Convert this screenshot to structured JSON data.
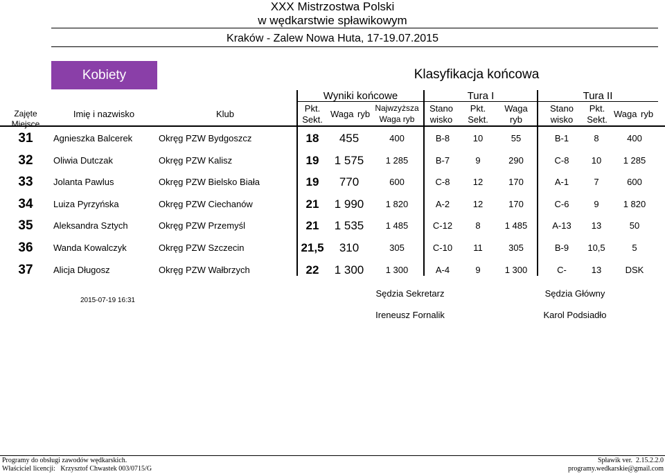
{
  "header": {
    "title_line1": "XXX Mistrzostwa Polski",
    "title_line2": "w wędkarstwie spławikowym",
    "location": "Kraków - Zalew Nowa Huta, 17-19.07.2015",
    "category": "Kobiety",
    "classification": "Klasyfikacja końcowa"
  },
  "table": {
    "groups": {
      "final": "Wyniki końcowe",
      "round1": "Tura I",
      "round2": "Tura II"
    },
    "columns": {
      "place": "Zajęte Miejsce",
      "name": "Imię i nazwisko",
      "club": "Klub",
      "pkt_a": "Pkt.",
      "pkt_b": "Sekt.",
      "waga_a": "Waga",
      "waga_b": "ryb",
      "biggest_a": "Najwzyższa",
      "biggest_b": "Waga ryb",
      "stano_a": "Stano",
      "stano_b": "wisko"
    },
    "rows": [
      {
        "place": "31",
        "name": "Agnieszka Balcerek",
        "club": "Okręg PZW Bydgoszcz",
        "pkt": "18",
        "waga": "455",
        "biggest": "400",
        "t1_stano": "B-8",
        "t1_pkt": "10",
        "t1_waga": "55",
        "t2_stano": "B-1",
        "t2_pkt": "8",
        "t2_waga": "400"
      },
      {
        "place": "32",
        "name": "Oliwia Dutczak",
        "club": "Okręg PZW Kalisz",
        "pkt": "19",
        "waga": "1 575",
        "biggest": "1 285",
        "t1_stano": "B-7",
        "t1_pkt": "9",
        "t1_waga": "290",
        "t2_stano": "C-8",
        "t2_pkt": "10",
        "t2_waga": "1 285"
      },
      {
        "place": "33",
        "name": "Jolanta Pawlus",
        "club": "Okręg PZW Bielsko Biała",
        "pkt": "19",
        "waga": "770",
        "biggest": "600",
        "t1_stano": "C-8",
        "t1_pkt": "12",
        "t1_waga": "170",
        "t2_stano": "A-1",
        "t2_pkt": "7",
        "t2_waga": "600"
      },
      {
        "place": "34",
        "name": "Luiza Pyrzyńska",
        "club": "Okręg PZW Ciechanów",
        "pkt": "21",
        "waga": "1 990",
        "biggest": "1 820",
        "t1_stano": "A-2",
        "t1_pkt": "12",
        "t1_waga": "170",
        "t2_stano": "C-6",
        "t2_pkt": "9",
        "t2_waga": "1 820"
      },
      {
        "place": "35",
        "name": "Aleksandra Sztych",
        "club": "Okręg PZW Przemyśl",
        "pkt": "21",
        "waga": "1 535",
        "biggest": "1 485",
        "t1_stano": "C-12",
        "t1_pkt": "8",
        "t1_waga": "1 485",
        "t2_stano": "A-13",
        "t2_pkt": "13",
        "t2_waga": "50"
      },
      {
        "place": "36",
        "name": "Wanda Kowalczyk",
        "club": "Okręg PZW Szczecin",
        "pkt": "21,5",
        "waga": "310",
        "biggest": "305",
        "t1_stano": "C-10",
        "t1_pkt": "11",
        "t1_waga": "305",
        "t2_stano": "B-9",
        "t2_pkt": "10,5",
        "t2_waga": "5"
      },
      {
        "place": "37",
        "name": "Alicja Długosz",
        "club": "Okręg PZW Wałbrzych",
        "pkt": "22",
        "waga": "1 300",
        "biggest": "1 300",
        "t1_stano": "A-4",
        "t1_pkt": "9",
        "t1_waga": "1 300",
        "t2_stano": "C-",
        "t2_pkt": "13",
        "t2_waga": "DSK"
      }
    ]
  },
  "footer": {
    "timestamp": "2015-07-19 16:31",
    "secretary_title": "Sędzia Sekretarz",
    "secretary_name": "Ireneusz Fornalik",
    "chief_title": "Sędzia Główny",
    "chief_name": "Karol Podsiadło",
    "program_line": "Programy do obsługi zawodów wędkarskich.",
    "license_line": "Właściciel licencji:   Krzysztof Chwastek 003/0715/G",
    "version_line": "Spławik ver.  2.15.2.2.0",
    "contact_line": "programy.wedkarskie@gmail.com"
  },
  "colors": {
    "category_bg": "#8a3fa8",
    "category_text": "#ffffff"
  }
}
